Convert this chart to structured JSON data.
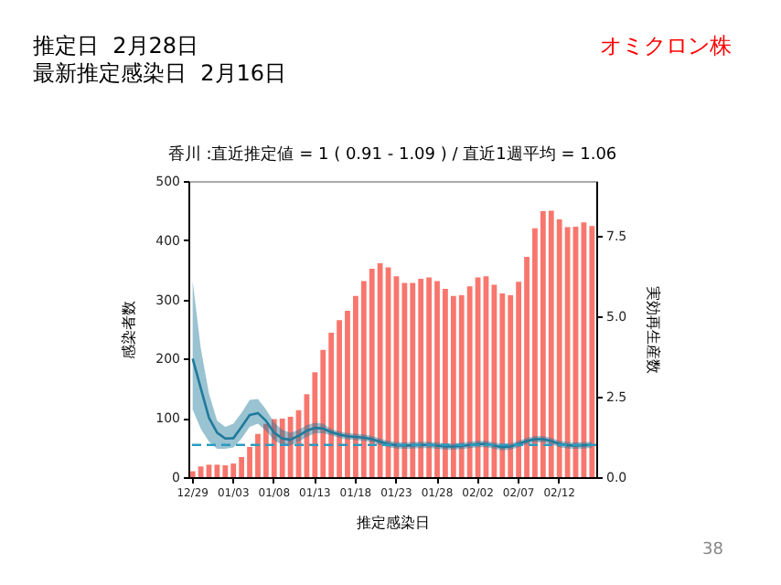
{
  "chart_data": {
    "type": "bar",
    "title": "香川 :直近推定値 = 1 ( 0.91 - 1.09 ) / 直近1週平均 = 1.06",
    "xlabel": "推定感染日",
    "ylabel": "感染者数",
    "y2label": "実効再生産数",
    "annotations": [
      "推定日  2月28日",
      "最新推定感染日  2月16日",
      "オミクロン株",
      "38"
    ],
    "categories": [
      "12/29",
      null,
      null,
      null,
      null,
      "01/03",
      null,
      null,
      null,
      null,
      "01/08",
      null,
      null,
      null,
      null,
      "01/13",
      null,
      null,
      null,
      null,
      "01/18",
      null,
      null,
      null,
      null,
      "01/23",
      null,
      null,
      null,
      null,
      "01/28",
      null,
      null,
      null,
      null,
      "02/02",
      null,
      null,
      null,
      null,
      "02/07",
      null,
      null,
      null,
      null,
      "02/12",
      null,
      null,
      null,
      null
    ],
    "series": [
      {
        "color": "#f8766d",
        "values": [
          10,
          18,
          21,
          21,
          20,
          23,
          34,
          51,
          73,
          90,
          98,
          99,
          102,
          113,
          140,
          177,
          215,
          244,
          265,
          281,
          306,
          331,
          352,
          361,
          354,
          339,
          328,
          328,
          335,
          337,
          331,
          318,
          306,
          307,
          322,
          337,
          339,
          325,
          310,
          307,
          330,
          372,
          420,
          449,
          450,
          435,
          422,
          423,
          430,
          424
        ]
      },
      {
        "type": "line",
        "axis": "y2",
        "color": "#1f7a9c",
        "values": [
          3.68,
          2.76,
          1.84,
          1.38,
          1.2,
          1.21,
          1.56,
          1.93,
          1.99,
          1.75,
          1.38,
          1.2,
          1.16,
          1.29,
          1.44,
          1.53,
          1.51,
          1.4,
          1.32,
          1.27,
          1.25,
          1.23,
          1.18,
          1.1,
          1.03,
          0.99,
          0.98,
          0.99,
          1.0,
          1.0,
          0.98,
          0.95,
          0.95,
          0.97,
          1.0,
          1.03,
          1.03,
          0.98,
          0.93,
          0.95,
          1.03,
          1.12,
          1.18,
          1.18,
          1.12,
          1.03,
          0.99,
          0.98,
          0.99,
          1.0
        ],
        "lower": [
          2.1,
          1.5,
          1.1,
          0.88,
          0.88,
          0.92,
          1.2,
          1.56,
          1.66,
          1.44,
          1.14,
          1.0,
          0.98,
          1.1,
          1.25,
          1.36,
          1.36,
          1.3,
          1.22,
          1.17,
          1.15,
          1.13,
          1.08,
          1.0,
          0.93,
          0.89,
          0.88,
          0.89,
          0.9,
          0.9,
          0.88,
          0.85,
          0.85,
          0.87,
          0.9,
          0.93,
          0.93,
          0.88,
          0.83,
          0.85,
          0.93,
          1.02,
          1.08,
          1.08,
          1.02,
          0.93,
          0.89,
          0.88,
          0.89,
          0.91
        ],
        "upper": [
          6.1,
          4.0,
          2.6,
          1.75,
          1.56,
          1.66,
          2.0,
          2.4,
          2.43,
          2.1,
          1.7,
          1.47,
          1.38,
          1.47,
          1.62,
          1.69,
          1.66,
          1.5,
          1.42,
          1.37,
          1.35,
          1.33,
          1.28,
          1.2,
          1.13,
          1.09,
          1.08,
          1.09,
          1.1,
          1.1,
          1.08,
          1.05,
          1.05,
          1.07,
          1.1,
          1.13,
          1.13,
          1.08,
          1.03,
          1.05,
          1.13,
          1.22,
          1.28,
          1.28,
          1.22,
          1.13,
          1.09,
          1.08,
          1.09,
          1.09
        ]
      }
    ],
    "ylim": [
      0,
      500
    ],
    "yticks": [
      0,
      100,
      200,
      300,
      400,
      500
    ],
    "y2lim": [
      0,
      9.2
    ],
    "y2ticks": [
      {
        "value": 0,
        "label": "0.0"
      },
      {
        "value": 2.5,
        "label": "2.5"
      },
      {
        "value": 5,
        "label": "5.0"
      },
      {
        "value": 7.5,
        "label": "7.5"
      }
    ],
    "ref_lines": [
      {
        "axis": "y2",
        "value": 1,
        "color": "#2a9bc0",
        "line_style": "dashed"
      }
    ],
    "grid": false
  }
}
